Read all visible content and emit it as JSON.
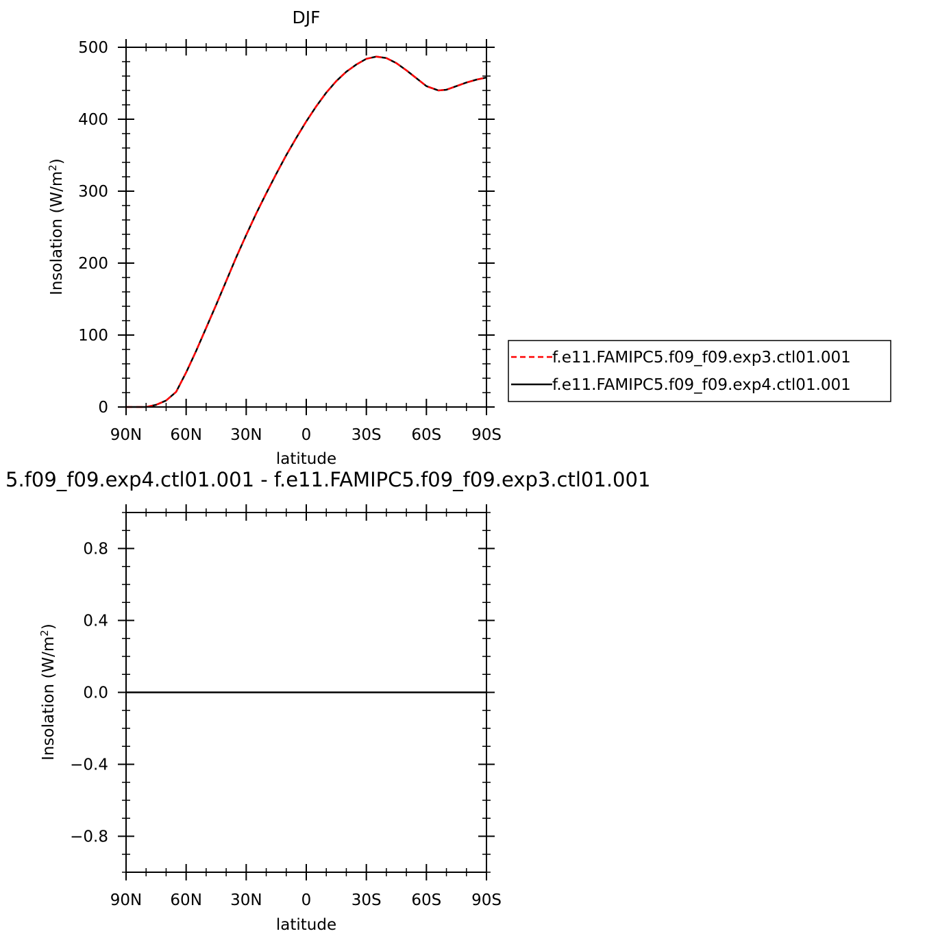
{
  "chart_data": [
    {
      "type": "line",
      "title": "DJF",
      "xlabel": "latitude",
      "ylabel": "Insolation  (W/m",
      "ylabel_sup": "2",
      "ylabel_close": ")",
      "xlim": [
        -90,
        90
      ],
      "ylim": [
        0,
        500
      ],
      "x_ticks": [
        {
          "value": -90,
          "label": "90N"
        },
        {
          "value": -60,
          "label": "60N"
        },
        {
          "value": -30,
          "label": "30N"
        },
        {
          "value": 0,
          "label": "0"
        },
        {
          "value": 30,
          "label": "30S"
        },
        {
          "value": 60,
          "label": "60S"
        },
        {
          "value": 90,
          "label": "90S"
        }
      ],
      "y_ticks": [
        {
          "value": 0,
          "label": "0"
        },
        {
          "value": 100,
          "label": "100"
        },
        {
          "value": 200,
          "label": "200"
        },
        {
          "value": 300,
          "label": "300"
        },
        {
          "value": 400,
          "label": "400"
        },
        {
          "value": 500,
          "label": "500"
        }
      ],
      "legend_position": "right",
      "series": [
        {
          "name": "f.e11.FAMIPC5.f09_f09.exp3.ctl01.001",
          "color": "#ff0000",
          "style": "dashed",
          "x": [
            -90,
            -80,
            -75,
            -70,
            -65,
            -60,
            -55,
            -50,
            -45,
            -40,
            -35,
            -30,
            -25,
            -20,
            -15,
            -10,
            -5,
            0,
            5,
            10,
            15,
            20,
            25,
            30,
            35,
            40,
            45,
            50,
            55,
            60,
            66,
            70,
            75,
            80,
            85,
            90
          ],
          "values": [
            0,
            0,
            3,
            9,
            21,
            48,
            78,
            110,
            142,
            175,
            208,
            239,
            269,
            297,
            324,
            350,
            374,
            397,
            418,
            437,
            453,
            466,
            476,
            484,
            487,
            485,
            478,
            468,
            457,
            446,
            440,
            441,
            446,
            451,
            455,
            458
          ]
        },
        {
          "name": "f.e11.FAMIPC5.f09_f09.exp4.ctl01.001",
          "color": "#000000",
          "style": "solid",
          "x": [
            -90,
            -80,
            -75,
            -70,
            -65,
            -60,
            -55,
            -50,
            -45,
            -40,
            -35,
            -30,
            -25,
            -20,
            -15,
            -10,
            -5,
            0,
            5,
            10,
            15,
            20,
            25,
            30,
            35,
            40,
            45,
            50,
            55,
            60,
            66,
            70,
            75,
            80,
            85,
            90
          ],
          "values": [
            0,
            0,
            3,
            9,
            21,
            48,
            78,
            110,
            142,
            175,
            208,
            239,
            269,
            297,
            324,
            350,
            374,
            397,
            418,
            437,
            453,
            466,
            476,
            484,
            487,
            485,
            478,
            468,
            457,
            446,
            440,
            441,
            446,
            451,
            455,
            458
          ]
        }
      ]
    },
    {
      "type": "line",
      "title": "5.f09_f09.exp4.ctl01.001  -  f.e11.FAMIPC5.f09_f09.exp3.ctl01.001",
      "xlabel": "latitude",
      "ylabel": "Insolation  (W/m",
      "ylabel_sup": "2",
      "ylabel_close": ")",
      "xlim": [
        -90,
        90
      ],
      "ylim": [
        -1,
        1
      ],
      "x_ticks": [
        {
          "value": -90,
          "label": "90N"
        },
        {
          "value": -60,
          "label": "60N"
        },
        {
          "value": -30,
          "label": "30N"
        },
        {
          "value": 0,
          "label": "0"
        },
        {
          "value": 30,
          "label": "30S"
        },
        {
          "value": 60,
          "label": "60S"
        },
        {
          "value": 90,
          "label": "90S"
        }
      ],
      "y_ticks": [
        {
          "value": -0.8,
          "label": "−0.8"
        },
        {
          "value": -0.4,
          "label": "−0.4"
        },
        {
          "value": 0.0,
          "label": "0.0"
        },
        {
          "value": 0.4,
          "label": "0.4"
        },
        {
          "value": 0.8,
          "label": "0.8"
        }
      ],
      "series": [
        {
          "color": "#000000",
          "style": "solid",
          "x": [
            -90,
            -45,
            0,
            45,
            90
          ],
          "values": [
            0,
            0,
            0,
            0,
            0
          ]
        }
      ]
    }
  ]
}
